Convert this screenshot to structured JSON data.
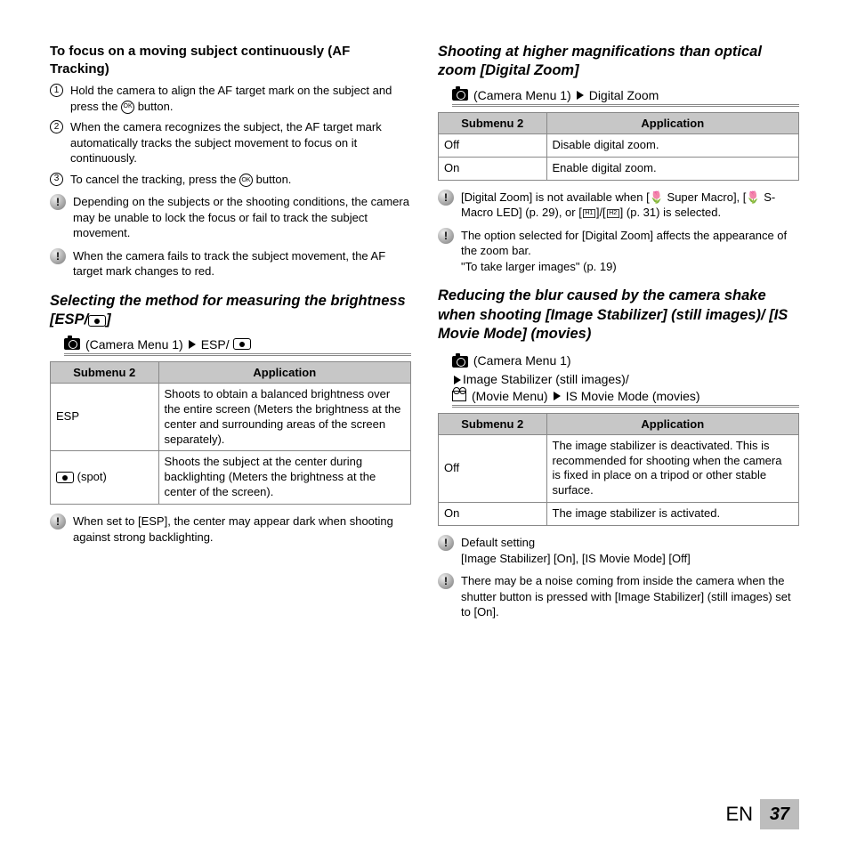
{
  "left": {
    "heading1": "To focus on a moving subject continuously (AF Tracking)",
    "steps": [
      "Hold the camera to align the AF target mark on the subject and press the ⊛ button.",
      "When the camera recognizes the subject, the AF target mark automatically tracks the subject movement to focus on it continuously.",
      "To cancel the tracking, press the ⊛ button."
    ],
    "notes1": [
      "Depending on the subjects or the shooting conditions, the camera may be unable to lock the focus or fail to track the subject movement.",
      "When the camera fails to track the subject movement, the AF target mark changes to red."
    ],
    "heading2": "Selecting the method for measuring the brightness [ESP/",
    "heading2_tail": "]",
    "menupath1_a": "(Camera Menu 1)",
    "menupath1_b": "ESP/",
    "table1": {
      "h1": "Submenu 2",
      "h2": "Application",
      "rows": [
        {
          "sub": "ESP",
          "app": "Shoots to obtain a balanced brightness over the entire screen (Meters the brightness at the center and surrounding areas of the screen separately)."
        },
        {
          "sub_icon": "spot",
          "sub_tail": " (spot)",
          "app": "Shoots the subject at the center during backlighting (Meters the brightness at the center of the screen)."
        }
      ]
    },
    "notes2": [
      "When set to [ESP], the center may appear dark when shooting against strong backlighting."
    ]
  },
  "right": {
    "heading1": "Shooting at higher magnifications than optical zoom [Digital Zoom]",
    "menupath1_a": "(Camera Menu 1)",
    "menupath1_b": "Digital Zoom",
    "table1": {
      "h1": "Submenu 2",
      "h2": "Application",
      "rows": [
        {
          "sub": "Off",
          "app": "Disable digital zoom."
        },
        {
          "sub": "On",
          "app": "Enable digital zoom."
        }
      ]
    },
    "notes1": [
      "[Digital Zoom] is not available when [🌷 Super Macro], [🌷 S-Macro LED] (p. 29), or [⬚]/[⬚] (p. 31) is selected.",
      "The option selected for [Digital Zoom] affects the appearance of the zoom bar.\n\"To take larger images\" (p. 19)"
    ],
    "heading2": "Reducing the blur caused by the camera shake when shooting [Image Stabilizer] (still images)/ [IS Movie Mode] (movies)",
    "menu_a": "(Camera Menu 1)",
    "menu_b": "Image Stabilizer (still images)/",
    "menu_c": "(Movie Menu)",
    "menu_d": "IS Movie Mode (movies)",
    "table2": {
      "h1": "Submenu 2",
      "h2": "Application",
      "rows": [
        {
          "sub": "Off",
          "app": "The image stabilizer is deactivated. This is recommended for shooting when the camera is fixed in place on a tripod or other stable surface."
        },
        {
          "sub": "On",
          "app": "The image stabilizer is activated."
        }
      ]
    },
    "notes2": [
      "Default setting\n[Image Stabilizer] [On], [IS Movie Mode] [Off]",
      "There may be a noise coming from inside the camera when the shutter button is pressed with [Image Stabilizer] (still images) set to [On]."
    ]
  },
  "footer": {
    "lang": "EN",
    "page": "37"
  }
}
